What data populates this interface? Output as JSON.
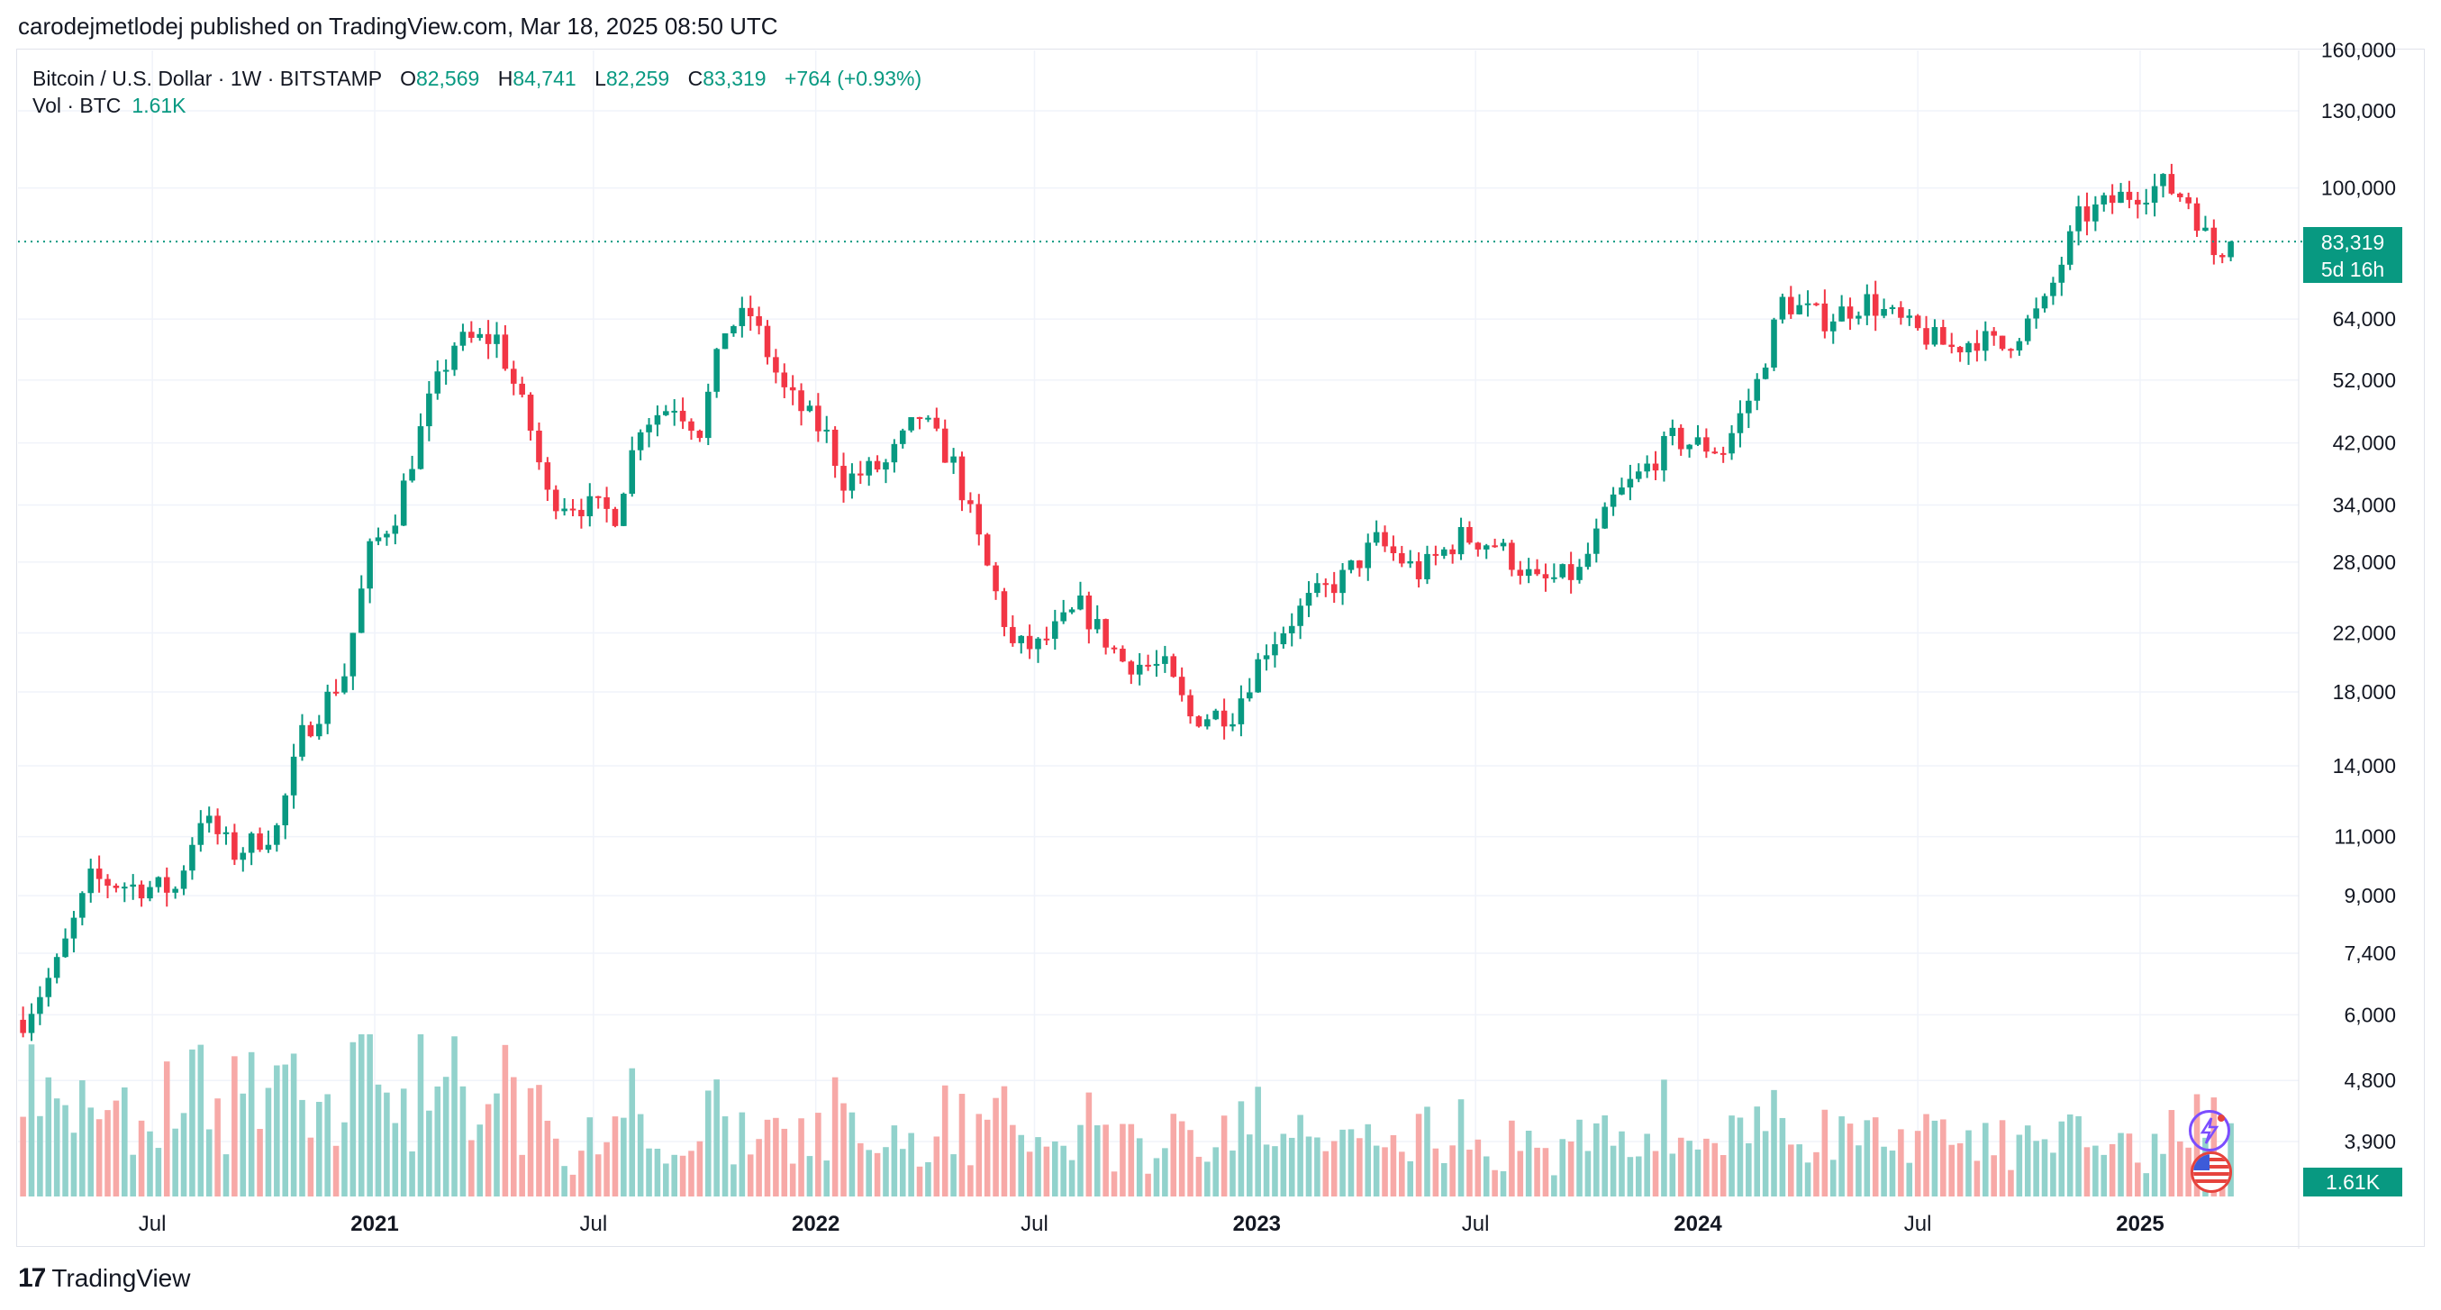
{
  "publisher_line": "carodejmetlodej published on TradingView.com, Mar 18, 2025 08:50 UTC",
  "legend": {
    "symbol": "Bitcoin / U.S. Dollar · 1W · BITSTAMP",
    "o_label": "O",
    "o_value": "82,569",
    "h_label": "H",
    "h_value": "84,741",
    "l_label": "L",
    "l_value": "82,259",
    "c_label": "C",
    "c_value": "83,319",
    "change": "+764 (+0.93%)",
    "vol_label": "Vol · BTC",
    "vol_value": "1.61K"
  },
  "price_tag": {
    "price": "83,319",
    "countdown": "5d 16h"
  },
  "volume_tag": "1.61K",
  "brand": {
    "logo": "17",
    "name": "TradingView"
  },
  "icons": {
    "assistant": "bolt-sparkle-icon",
    "flag": "us-flag-icon"
  },
  "colors": {
    "up": "#089981",
    "down": "#f23645",
    "vol_up": "#92d2cc",
    "vol_down": "#f7a9a7",
    "grid": "#f0f3fa"
  },
  "chart_data": {
    "type": "candlestick",
    "title": "Bitcoin / U.S. Dollar · 1W · BITSTAMP",
    "y_scale": "log",
    "ylim": [
      4000,
      160000
    ],
    "y_ticks": [
      3900,
      4800,
      6000,
      7400,
      9000,
      11000,
      14000,
      18000,
      22000,
      28000,
      34000,
      42000,
      52000,
      64000,
      100000,
      130000,
      160000
    ],
    "x_ticks": [
      {
        "label": "Jul",
        "date": "2020-07-01",
        "bold": false
      },
      {
        "label": "2021",
        "date": "2021-01-01",
        "bold": true
      },
      {
        "label": "Jul",
        "date": "2021-07-01",
        "bold": false
      },
      {
        "label": "2022",
        "date": "2022-01-01",
        "bold": true
      },
      {
        "label": "Jul",
        "date": "2022-07-01",
        "bold": false
      },
      {
        "label": "2023",
        "date": "2023-01-01",
        "bold": true
      },
      {
        "label": "Jul",
        "date": "2023-07-01",
        "bold": false
      },
      {
        "label": "2024",
        "date": "2024-01-01",
        "bold": true
      },
      {
        "label": "Jul",
        "date": "2024-07-01",
        "bold": false
      },
      {
        "label": "2025",
        "date": "2025-01-01",
        "bold": true
      }
    ],
    "x_range": [
      "2020-03-16",
      "2025-06-30"
    ],
    "last_price": 83319,
    "weekly_close_path": [
      [
        "2020-03-16",
        5900
      ],
      [
        "2020-04-13",
        7100
      ],
      [
        "2020-05-11",
        9500
      ],
      [
        "2020-06-15",
        9300
      ],
      [
        "2020-07-20",
        9200
      ],
      [
        "2020-08-10",
        11800
      ],
      [
        "2020-09-07",
        10400
      ],
      [
        "2020-10-12",
        11300
      ],
      [
        "2020-11-02",
        15500
      ],
      [
        "2020-12-07",
        19200
      ],
      [
        "2020-12-28",
        29000
      ],
      [
        "2021-01-18",
        33000
      ],
      [
        "2021-02-15",
        48000
      ],
      [
        "2021-03-08",
        59000
      ],
      [
        "2021-04-12",
        60000
      ],
      [
        "2021-05-10",
        44000
      ],
      [
        "2021-05-24",
        35000
      ],
      [
        "2021-06-21",
        34000
      ],
      [
        "2021-07-19",
        33000
      ],
      [
        "2021-08-09",
        45000
      ],
      [
        "2021-09-06",
        48000
      ],
      [
        "2021-09-27",
        44000
      ],
      [
        "2021-10-18",
        62000
      ],
      [
        "2021-11-08",
        65000
      ],
      [
        "2021-12-06",
        50000
      ],
      [
        "2022-01-10",
        43000
      ],
      [
        "2022-01-24",
        37000
      ],
      [
        "2022-02-28",
        39000
      ],
      [
        "2022-03-28",
        46000
      ],
      [
        "2022-04-25",
        39000
      ],
      [
        "2022-05-16",
        30000
      ],
      [
        "2022-06-13",
        21000
      ],
      [
        "2022-07-04",
        21000
      ],
      [
        "2022-08-08",
        24000
      ],
      [
        "2022-09-12",
        20000
      ],
      [
        "2022-10-17",
        19500
      ],
      [
        "2022-11-07",
        16500
      ],
      [
        "2022-12-12",
        16800
      ],
      [
        "2023-01-09",
        21000
      ],
      [
        "2023-02-13",
        24500
      ],
      [
        "2023-03-13",
        26500
      ],
      [
        "2023-04-10",
        30000
      ],
      [
        "2023-05-15",
        27000
      ],
      [
        "2023-06-19",
        30500
      ],
      [
        "2023-07-17",
        29800
      ],
      [
        "2023-08-21",
        26000
      ],
      [
        "2023-09-25",
        27000
      ],
      [
        "2023-10-23",
        34500
      ],
      [
        "2023-11-13",
        37500
      ],
      [
        "2023-12-11",
        42500
      ],
      [
        "2024-01-22",
        41000
      ],
      [
        "2024-02-19",
        51500
      ],
      [
        "2024-03-11",
        68000
      ],
      [
        "2024-04-15",
        64000
      ],
      [
        "2024-05-20",
        68000
      ],
      [
        "2024-06-24",
        62000
      ],
      [
        "2024-07-29",
        58000
      ],
      [
        "2024-08-19",
        60000
      ],
      [
        "2024-09-09",
        58000
      ],
      [
        "2024-10-14",
        67000
      ],
      [
        "2024-11-11",
        90000
      ],
      [
        "2024-12-16",
        97000
      ],
      [
        "2025-01-20",
        101000
      ],
      [
        "2025-02-10",
        96000
      ],
      [
        "2025-03-03",
        80000
      ],
      [
        "2025-03-17",
        83319
      ]
    ]
  }
}
